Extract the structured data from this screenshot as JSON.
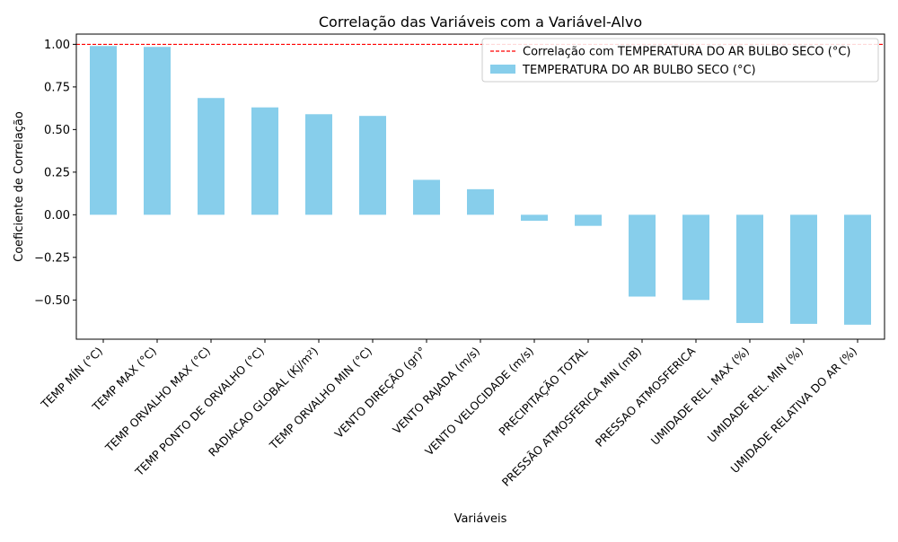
{
  "chart_data": {
    "type": "bar",
    "title": "Correlação das Variáveis com a Variável-Alvo",
    "xlabel": "Variáveis",
    "ylabel": "Coeficiente de Correlação",
    "ylim": [
      -0.73,
      1.06
    ],
    "yticks": [
      -0.5,
      -0.25,
      0.0,
      0.25,
      0.5,
      0.75,
      1.0
    ],
    "ytick_labels": [
      "−0.50",
      "−0.25",
      "0.00",
      "0.25",
      "0.50",
      "0.75",
      "1.00"
    ],
    "grid": false,
    "legend_position": "top-right",
    "bar_color": "#87ceeb",
    "reference_line": {
      "value": 1.0,
      "color": "#ff0000",
      "style": "dashed",
      "label": "Correlação com TEMPERATURA DO AR BULBO SECO (°C)"
    },
    "categories": [
      "TEMP MÍN (°C)",
      "TEMP MAX (°C)",
      "TEMP ORVALHO MAX (°C)",
      "TEMP PONTO DE ORVALHO (°C)",
      "RADIACAO GLOBAL (Kj/m²)",
      "TEMP ORVALHO MIN (°C)",
      "VENTO DIREÇÃO (gr)°",
      "VENTO RAJADA (m/s)",
      "VENTO VELOCIDADE (m/s)",
      "PRECIPITAÇÃO TOTAL",
      "PRESSÃO ATMOSFERICA MIN (mB)",
      "PRESSAO ATMOSFERICA",
      "UMIDADE REL. MAX (%)",
      "UMIDADE REL. MIN (%)",
      "UMIDADE RELATIVA DO AR (%)"
    ],
    "series": [
      {
        "name": "TEMPERATURA DO AR BULBO SECO (°C)",
        "values": [
          0.99,
          0.985,
          0.685,
          0.63,
          0.59,
          0.58,
          0.205,
          0.15,
          -0.035,
          -0.065,
          -0.48,
          -0.5,
          -0.635,
          -0.64,
          -0.645
        ]
      }
    ]
  }
}
